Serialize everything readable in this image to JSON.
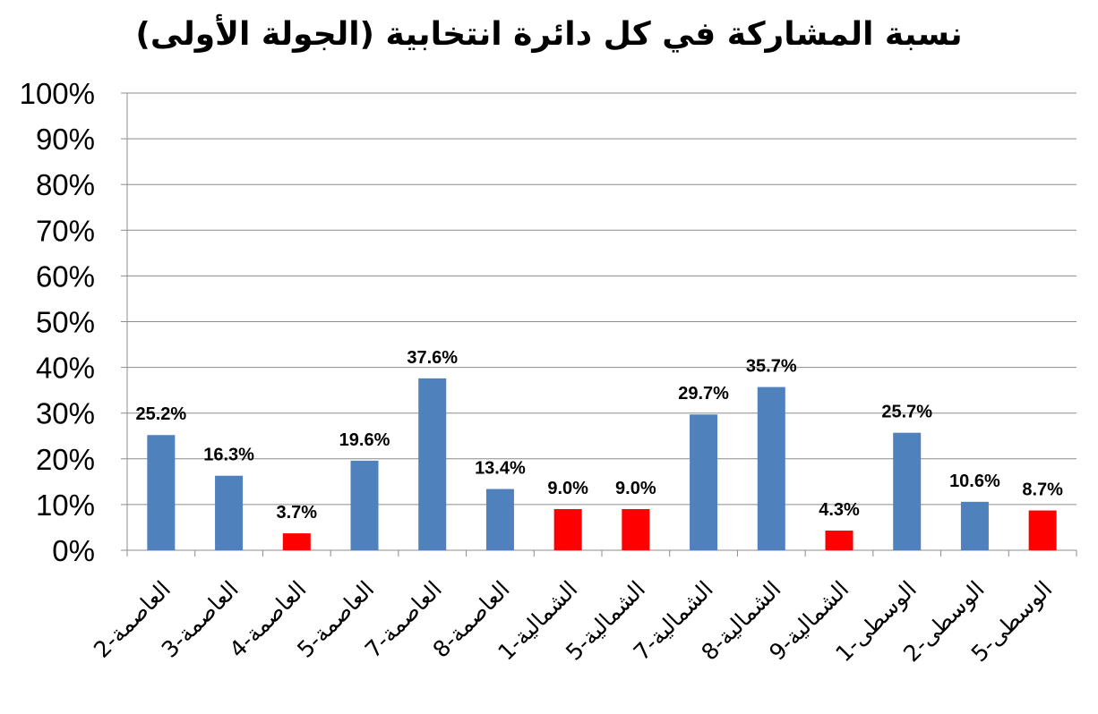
{
  "chart_data": {
    "type": "bar",
    "title": "نسبة المشاركة في كل دائرة انتخابية (الجولة الأولى)",
    "categories": [
      "العاصمة-2",
      "العاصمة-3",
      "العاصمة-4",
      "العاصمة-5",
      "العاصمة-7",
      "العاصمة-8",
      "الشمالية-1",
      "الشمالية-5",
      "الشمالية-7",
      "الشمالية-8",
      "الشمالية-9",
      "الوسطى-1",
      "الوسطى-2",
      "الوسطى-5"
    ],
    "values": [
      25.2,
      16.3,
      3.7,
      19.6,
      37.6,
      13.4,
      9.0,
      9.0,
      29.7,
      35.7,
      4.3,
      25.7,
      10.6,
      8.7
    ],
    "data_labels": [
      "25.2%",
      "16.3%",
      "3.7%",
      "19.6%",
      "37.6%",
      "13.4%",
      "9.0%",
      "9.0%",
      "29.7%",
      "35.7%",
      "4.3%",
      "25.7%",
      "10.6%",
      "8.7%"
    ],
    "bar_colors": [
      "#4f81bd",
      "#4f81bd",
      "#ff0000",
      "#4f81bd",
      "#4f81bd",
      "#4f81bd",
      "#ff0000",
      "#ff0000",
      "#4f81bd",
      "#4f81bd",
      "#ff0000",
      "#4f81bd",
      "#4f81bd",
      "#ff0000"
    ],
    "y_ticks": [
      "0%",
      "10%",
      "20%",
      "30%",
      "40%",
      "50%",
      "60%",
      "70%",
      "80%",
      "90%",
      "100%"
    ],
    "ylim": [
      0,
      100
    ],
    "xlabel": "",
    "ylabel": "",
    "grid": true,
    "legend": false
  }
}
